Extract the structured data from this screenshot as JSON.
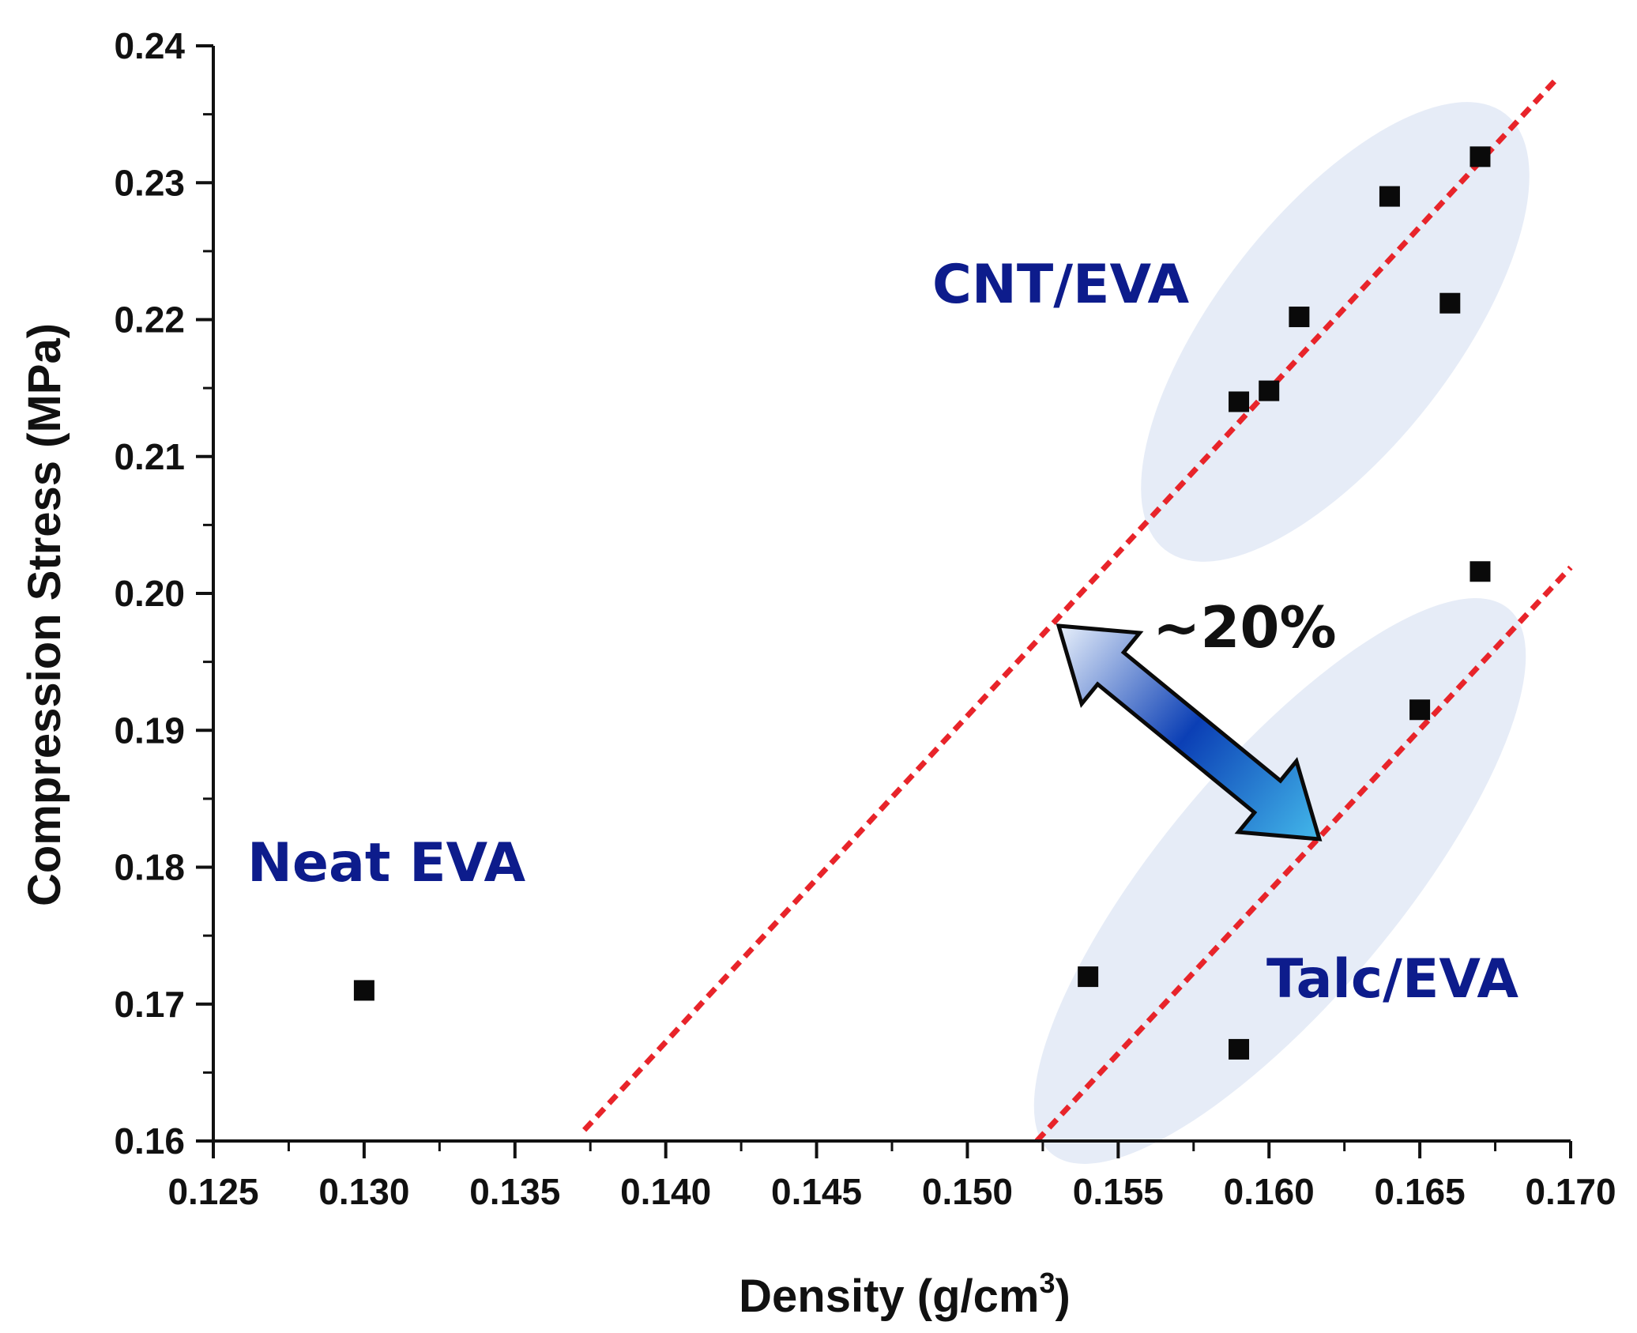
{
  "chart_data": {
    "type": "scatter",
    "xlabel": "Density (g/cm",
    "xlabel_sup": "3",
    "xlabel_close": ")",
    "ylabel": "Compression Stress (MPa)",
    "xlim": [
      0.125,
      0.17
    ],
    "ylim": [
      0.16,
      0.24
    ],
    "x_ticks": [
      0.125,
      0.13,
      0.135,
      0.14,
      0.145,
      0.15,
      0.155,
      0.16,
      0.165,
      0.17
    ],
    "x_tick_labels": [
      "0.125",
      "0.130",
      "0.135",
      "0.140",
      "0.145",
      "0.150",
      "0.155",
      "0.160",
      "0.165",
      "0.170"
    ],
    "y_ticks": [
      0.16,
      0.17,
      0.18,
      0.19,
      0.2,
      0.21,
      0.22,
      0.23,
      0.24
    ],
    "y_tick_labels": [
      "0.16",
      "0.17",
      "0.18",
      "0.19",
      "0.20",
      "0.21",
      "0.22",
      "0.23",
      "0.24"
    ],
    "grid": false,
    "series": [
      {
        "name": "Neat EVA",
        "points": [
          [
            0.13,
            0.171
          ]
        ]
      },
      {
        "name": "CNT/EVA",
        "points": [
          [
            0.159,
            0.214
          ],
          [
            0.16,
            0.2148
          ],
          [
            0.161,
            0.2202
          ],
          [
            0.164,
            0.229
          ],
          [
            0.166,
            0.2212
          ],
          [
            0.167,
            0.2319
          ]
        ]
      },
      {
        "name": "Talc/EVA",
        "points": [
          [
            0.154,
            0.172
          ],
          [
            0.159,
            0.1667
          ],
          [
            0.165,
            0.1915
          ],
          [
            0.167,
            0.2016
          ]
        ]
      }
    ],
    "trend_lines": [
      {
        "group": "CNT/EVA",
        "from": [
          0.1373,
          0.1608
        ],
        "to": [
          0.1695,
          0.2375
        ],
        "style": "dashed",
        "color": "#e8242a"
      },
      {
        "group": "Talc/EVA",
        "from": [
          0.1523,
          0.16
        ],
        "to": [
          0.17,
          0.2019
        ],
        "style": "dashed",
        "color": "#e8242a"
      }
    ],
    "annotations": [
      {
        "text": "Neat EVA",
        "anchor": "above-left of point"
      },
      {
        "text": "CNT/EVA",
        "anchor": "upper group"
      },
      {
        "text": "Talc/EVA",
        "anchor": "lower group"
      },
      {
        "text": "~20%",
        "anchor": "double arrow between trend lines"
      }
    ],
    "colors": {
      "marker": "#0a0a0a",
      "trend": "#e8242a",
      "label": "#0d1c8c",
      "ellipse": "#e6ecf7",
      "arrow_light": "#e8f0fb",
      "arrow_mid": "#0b3fb5",
      "arrow_end": "#43b8ea"
    }
  }
}
